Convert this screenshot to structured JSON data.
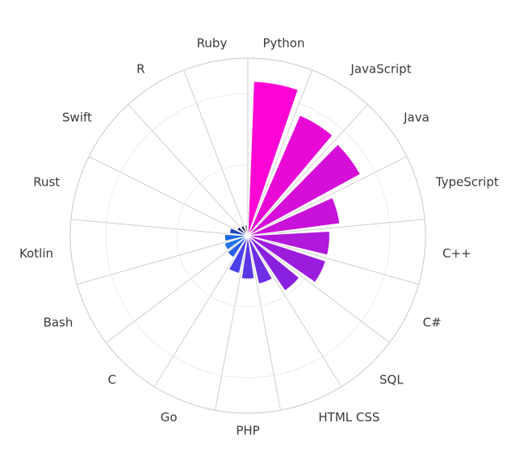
{
  "chart_data": {
    "type": "bar",
    "subtype": "polar-rose",
    "categories": [
      "Python",
      "JavaScript",
      "Java",
      "TypeScript",
      "C++",
      "C#",
      "SQL",
      "HTML CSS",
      "PHP",
      "Go",
      "C",
      "Bash",
      "Kotlin",
      "Rust",
      "Swift",
      "R",
      "Ruby"
    ],
    "values": [
      100,
      85,
      83,
      60,
      53,
      53,
      43,
      32,
      28,
      25,
      17,
      16,
      15,
      12,
      8,
      7,
      7
    ],
    "rmax": 115,
    "grid": true,
    "legend": "none",
    "colors": [
      "#ff05d5",
      "#e809d6",
      "#d50ed8",
      "#c812d9",
      "#b018dc",
      "#9c1cde",
      "#8a20df",
      "#6e2ee4",
      "#5b36e5",
      "#4a3fe8",
      "#2a60ea",
      "#1f74ec",
      "#1a66e0",
      "#1d3fb8",
      "#14207a",
      "#1b1f3a",
      "#8c8c8c"
    ]
  }
}
